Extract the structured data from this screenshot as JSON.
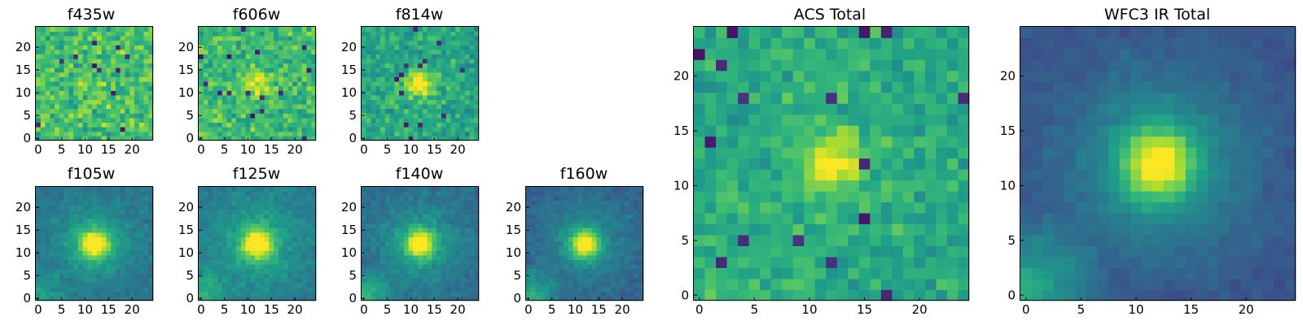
{
  "chart_data": [
    {
      "type": "heatmap",
      "title": "f435w",
      "image_size": 25,
      "xticks": [
        0,
        5,
        10,
        15,
        20
      ],
      "yticks": [
        0,
        5,
        10,
        15,
        20
      ],
      "source_x": 12,
      "source_y": 12,
      "source_strength": 0.05,
      "source_width": 2.2,
      "halo_strength": 0,
      "halo_width": 7,
      "background_level": 0.7,
      "corner_brightening": 0,
      "noise": 0.22,
      "seed": 11
    },
    {
      "type": "heatmap",
      "title": "f606w",
      "image_size": 25,
      "xticks": [
        0,
        5,
        10,
        15,
        20
      ],
      "yticks": [
        0,
        5,
        10,
        15,
        20
      ],
      "source_x": 12,
      "source_y": 12,
      "source_strength": 0.28,
      "source_width": 2.0,
      "halo_strength": 0,
      "halo_width": 7,
      "background_level": 0.68,
      "corner_brightening": 0.05,
      "noise": 0.2,
      "seed": 23
    },
    {
      "type": "heatmap",
      "title": "f814w",
      "image_size": 25,
      "xticks": [
        0,
        5,
        10,
        15,
        20
      ],
      "yticks": [
        0,
        5,
        10,
        15,
        20
      ],
      "source_x": 12,
      "source_y": 12,
      "source_strength": 0.45,
      "source_width": 1.8,
      "halo_strength": 0.05,
      "halo_width": 6,
      "background_level": 0.58,
      "corner_brightening": 0.08,
      "noise": 0.18,
      "seed": 37
    },
    {
      "type": "heatmap",
      "title": "f105w",
      "image_size": 25,
      "xticks": [
        0,
        5,
        10,
        15,
        20
      ],
      "yticks": [
        0,
        5,
        10,
        15,
        20
      ],
      "source_x": 12,
      "source_y": 12,
      "source_strength": 0.6,
      "source_width": 2.0,
      "halo_strength": 0.22,
      "halo_width": 6,
      "background_level": 0.38,
      "corner_brightening": 0.2,
      "noise": 0.08,
      "seed": 41
    },
    {
      "type": "heatmap",
      "title": "f125w",
      "image_size": 25,
      "xticks": [
        0,
        5,
        10,
        15,
        20
      ],
      "yticks": [
        0,
        5,
        10,
        15,
        20
      ],
      "source_x": 12,
      "source_y": 12,
      "source_strength": 0.6,
      "source_width": 2.0,
      "halo_strength": 0.22,
      "halo_width": 6,
      "background_level": 0.42,
      "corner_brightening": 0.25,
      "noise": 0.09,
      "seed": 53
    },
    {
      "type": "heatmap",
      "title": "f140w",
      "image_size": 25,
      "xticks": [
        0,
        5,
        10,
        15,
        20
      ],
      "yticks": [
        0,
        5,
        10,
        15,
        20
      ],
      "source_x": 12,
      "source_y": 12,
      "source_strength": 0.6,
      "source_width": 2.0,
      "halo_strength": 0.22,
      "halo_width": 6,
      "background_level": 0.36,
      "corner_brightening": 0.35,
      "noise": 0.08,
      "seed": 67
    },
    {
      "type": "heatmap",
      "title": "f160w",
      "image_size": 25,
      "xticks": [
        0,
        5,
        10,
        15,
        20
      ],
      "yticks": [
        0,
        5,
        10,
        15,
        20
      ],
      "source_x": 12,
      "source_y": 12,
      "source_strength": 0.62,
      "source_width": 2.0,
      "halo_strength": 0.2,
      "halo_width": 6,
      "background_level": 0.32,
      "corner_brightening": 0.35,
      "noise": 0.08,
      "seed": 71
    },
    {
      "type": "heatmap",
      "title": "ACS Total",
      "image_size": 25,
      "xticks": [
        0,
        5,
        10,
        15,
        20
      ],
      "yticks": [
        0,
        5,
        10,
        15,
        20
      ],
      "source_x": 12,
      "source_y": 12,
      "source_strength": 0.4,
      "source_width": 1.7,
      "halo_strength": 0.05,
      "halo_width": 6,
      "background_level": 0.6,
      "corner_brightening": 0.08,
      "noise": 0.15,
      "seed": 89
    },
    {
      "type": "heatmap",
      "title": "WFC3 IR Total",
      "image_size": 25,
      "xticks": [
        0,
        5,
        10,
        15,
        20
      ],
      "yticks": [
        0,
        5,
        10,
        15,
        20
      ],
      "source_x": 12,
      "source_y": 12,
      "source_strength": 0.55,
      "source_width": 2.2,
      "halo_strength": 0.28,
      "halo_width": 6,
      "background_level": 0.25,
      "corner_brightening": 0.4,
      "noise": 0.05,
      "seed": 97
    }
  ]
}
